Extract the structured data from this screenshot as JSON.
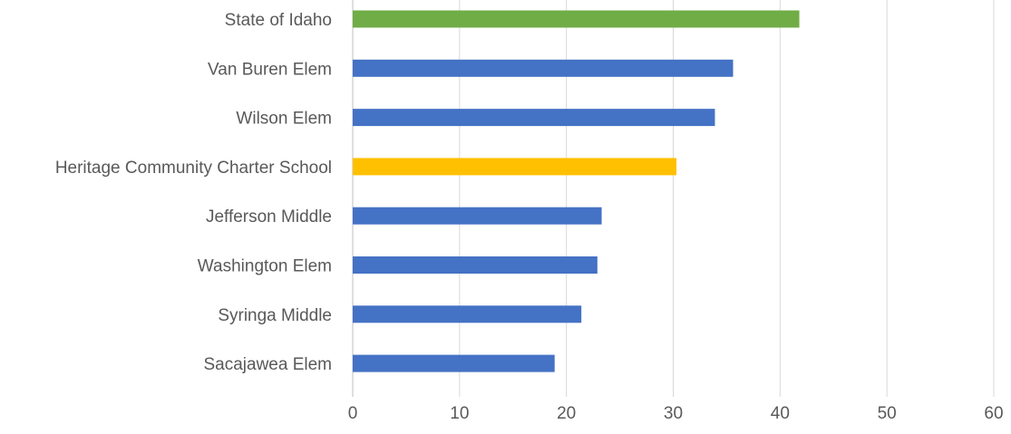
{
  "chart_data": {
    "type": "bar",
    "orientation": "horizontal",
    "title": "",
    "xlabel": "",
    "ylabel": "",
    "xlim": [
      0,
      60
    ],
    "x_ticks": [
      0,
      10,
      20,
      30,
      40,
      50,
      60
    ],
    "grid": "vertical",
    "legend": "none",
    "categories": [
      "State of Idaho",
      "Van Buren Elem",
      "Wilson Elem",
      "Heritage Community Charter School",
      "Jefferson Middle",
      "Washington Elem",
      "Syringa Middle",
      "Sacajawea Elem"
    ],
    "values": [
      41.8,
      35.6,
      33.9,
      30.3,
      23.3,
      22.9,
      21.4,
      18.9
    ],
    "colors": [
      "#70AD47",
      "#4472C4",
      "#4472C4",
      "#FFC000",
      "#4472C4",
      "#4472C4",
      "#4472C4",
      "#4472C4"
    ]
  }
}
